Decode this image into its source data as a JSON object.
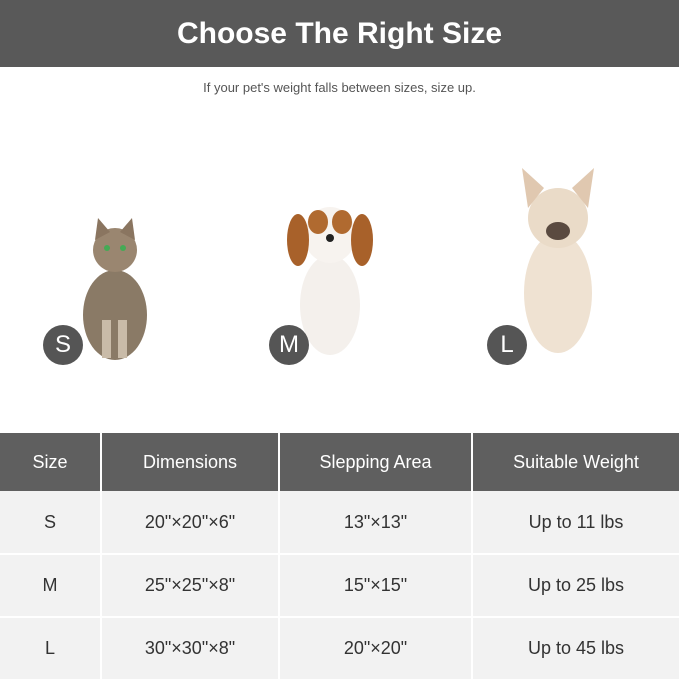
{
  "title": "Choose The Right Size",
  "subtitle": "If your pet's weight falls between sizes, size up.",
  "pets": [
    {
      "size": "S",
      "animal": "cat"
    },
    {
      "size": "M",
      "animal": "spaniel"
    },
    {
      "size": "L",
      "animal": "french-bulldog"
    }
  ],
  "table": {
    "headers": [
      "Size",
      "Dimensions",
      "Slepping Area",
      "Suitable Weight"
    ],
    "rows": [
      [
        "S",
        "20\"×20\"×6\"",
        "13\"×13\"",
        "Up to 11 lbs"
      ],
      [
        "M",
        "25\"×25\"×8\"",
        "15\"×15\"",
        "Up to 25 lbs"
      ],
      [
        "L",
        "30\"×30\"×8\"",
        "20\"×20\"",
        "Up to 45 lbs"
      ]
    ]
  }
}
